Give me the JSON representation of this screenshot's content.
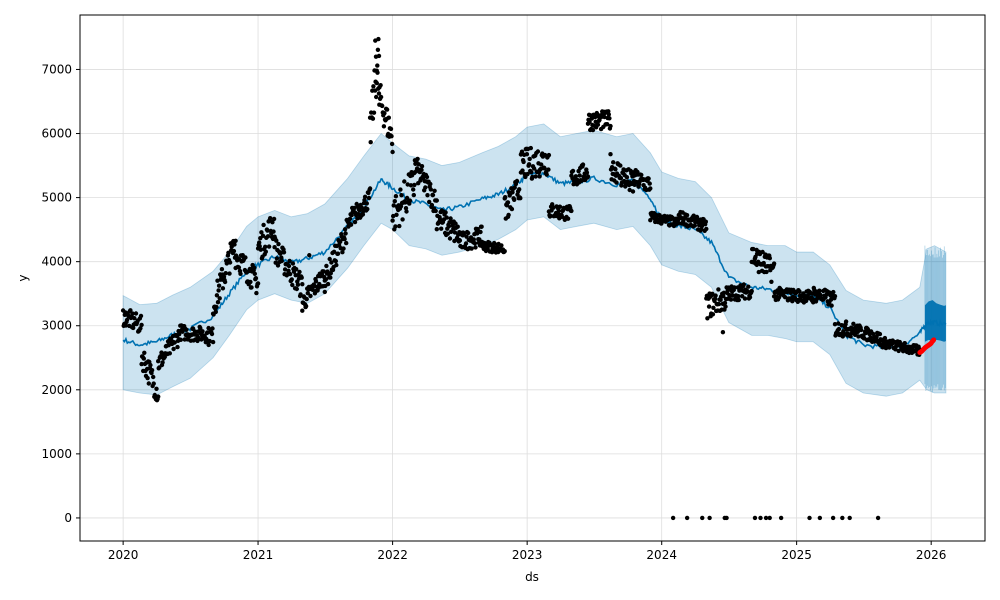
{
  "chart_data": {
    "type": "line",
    "title": "",
    "xlabel": "ds",
    "ylabel": "y",
    "xlim": [
      "2019-09-06",
      "2026-05-27"
    ],
    "ylim": [
      -360,
      7850
    ],
    "grid": true,
    "x_ticks": [
      "2020-01-01",
      "2021-01-01",
      "2022-01-01",
      "2023-01-01",
      "2024-01-01",
      "2025-01-01",
      "2026-01-01"
    ],
    "x_tick_labels": [
      "2020",
      "2021",
      "2022",
      "2023",
      "2024",
      "2025",
      "2026"
    ],
    "y_ticks": [
      0,
      1000,
      2000,
      3000,
      4000,
      5000,
      6000,
      7000
    ],
    "y_tick_labels": [
      "0",
      "1000",
      "2000",
      "3000",
      "4000",
      "5000",
      "6000",
      "7000"
    ],
    "colors": {
      "forecast": "#0072B2",
      "interval": "#0072B2",
      "observed": "#000000",
      "recent": "#ff0000",
      "grid": "#dddddd"
    },
    "forecast": {
      "name": "yhat",
      "points": [
        [
          "2020-01-01",
          2780
        ],
        [
          "2020-02-15",
          2700
        ],
        [
          "2020-04-01",
          2750
        ],
        [
          "2020-05-15",
          2860
        ],
        [
          "2020-07-01",
          2950
        ],
        [
          "2020-09-01",
          3150
        ],
        [
          "2020-10-15",
          3500
        ],
        [
          "2020-12-01",
          3850
        ],
        [
          "2021-01-01",
          3950
        ],
        [
          "2021-02-15",
          4080
        ],
        [
          "2021-04-01",
          3980
        ],
        [
          "2021-05-15",
          4050
        ],
        [
          "2021-07-01",
          4150
        ],
        [
          "2021-09-01",
          4550
        ],
        [
          "2021-10-15",
          4850
        ],
        [
          "2021-12-01",
          5280
        ],
        [
          "2022-01-01",
          5150
        ],
        [
          "2022-02-15",
          4960
        ],
        [
          "2022-04-01",
          4900
        ],
        [
          "2022-05-15",
          4800
        ],
        [
          "2022-07-01",
          4850
        ],
        [
          "2022-09-01",
          4980
        ],
        [
          "2022-10-15",
          5050
        ],
        [
          "2022-12-01",
          5200
        ],
        [
          "2023-01-01",
          5350
        ],
        [
          "2023-02-15",
          5380
        ],
        [
          "2023-04-01",
          5220
        ],
        [
          "2023-05-15",
          5240
        ],
        [
          "2023-07-01",
          5300
        ],
        [
          "2023-09-01",
          5200
        ],
        [
          "2023-10-15",
          5260
        ],
        [
          "2023-12-01",
          5000
        ],
        [
          "2024-01-01",
          4650
        ],
        [
          "2024-02-15",
          4560
        ],
        [
          "2024-04-01",
          4500
        ],
        [
          "2024-05-15",
          4300
        ],
        [
          "2024-07-01",
          3750
        ],
        [
          "2024-09-01",
          3600
        ],
        [
          "2024-10-15",
          3570
        ],
        [
          "2024-12-01",
          3530
        ],
        [
          "2025-01-01",
          3480
        ],
        [
          "2025-02-15",
          3470
        ],
        [
          "2025-04-01",
          3280
        ],
        [
          "2025-05-15",
          2850
        ],
        [
          "2025-07-01",
          2700
        ],
        [
          "2025-09-01",
          2660
        ],
        [
          "2025-10-15",
          2690
        ],
        [
          "2025-12-01",
          2880
        ],
        [
          "2025-12-20",
          3050
        ],
        [
          "2026-01-10",
          3050
        ],
        [
          "2026-02-10",
          3020
        ]
      ],
      "band_points": [
        [
          "2025-12-15",
          2750,
          3320
        ],
        [
          "2025-12-25",
          2780,
          3380
        ],
        [
          "2026-01-05",
          2760,
          3400
        ],
        [
          "2026-01-15",
          2780,
          3350
        ],
        [
          "2026-01-25",
          2770,
          3330
        ],
        [
          "2026-02-05",
          2750,
          3310
        ],
        [
          "2026-02-10",
          2760,
          3320
        ]
      ]
    },
    "uncertainty_interval": {
      "name": "yhat_lower / yhat_upper",
      "points": [
        [
          "2020-01-01",
          2000,
          3470
        ],
        [
          "2020-02-15",
          1950,
          3330
        ],
        [
          "2020-04-01",
          1920,
          3350
        ],
        [
          "2020-05-15",
          2050,
          3480
        ],
        [
          "2020-07-01",
          2180,
          3600
        ],
        [
          "2020-09-01",
          2500,
          3850
        ],
        [
          "2020-10-15",
          2850,
          4150
        ],
        [
          "2020-12-01",
          3250,
          4550
        ],
        [
          "2021-01-01",
          3400,
          4700
        ],
        [
          "2021-02-15",
          3500,
          4800
        ],
        [
          "2021-04-01",
          3400,
          4700
        ],
        [
          "2021-05-15",
          3350,
          4750
        ],
        [
          "2021-07-01",
          3500,
          4900
        ],
        [
          "2021-09-01",
          3900,
          5300
        ],
        [
          "2021-10-15",
          4250,
          5650
        ],
        [
          "2021-12-01",
          4600,
          6000
        ],
        [
          "2022-01-01",
          4500,
          5850
        ],
        [
          "2022-02-15",
          4250,
          5650
        ],
        [
          "2022-04-01",
          4200,
          5600
        ],
        [
          "2022-05-15",
          4100,
          5500
        ],
        [
          "2022-07-01",
          4150,
          5550
        ],
        [
          "2022-09-01",
          4250,
          5700
        ],
        [
          "2022-10-15",
          4350,
          5800
        ],
        [
          "2022-12-01",
          4500,
          5950
        ],
        [
          "2023-01-01",
          4650,
          6100
        ],
        [
          "2023-02-15",
          4700,
          6150
        ],
        [
          "2023-04-01",
          4500,
          5950
        ],
        [
          "2023-05-15",
          4550,
          6000
        ],
        [
          "2023-07-01",
          4600,
          6050
        ],
        [
          "2023-09-01",
          4500,
          5950
        ],
        [
          "2023-10-15",
          4550,
          6000
        ],
        [
          "2023-12-01",
          4250,
          5700
        ],
        [
          "2024-01-01",
          3950,
          5400
        ],
        [
          "2024-02-15",
          3850,
          5300
        ],
        [
          "2024-04-01",
          3800,
          5250
        ],
        [
          "2024-05-15",
          3600,
          5000
        ],
        [
          "2024-07-01",
          3050,
          4450
        ],
        [
          "2024-09-01",
          2850,
          4300
        ],
        [
          "2024-10-15",
          2850,
          4250
        ],
        [
          "2024-12-01",
          2800,
          4250
        ],
        [
          "2025-01-01",
          2750,
          4150
        ],
        [
          "2025-02-15",
          2750,
          4150
        ],
        [
          "2025-04-01",
          2550,
          3950
        ],
        [
          "2025-05-15",
          2100,
          3550
        ],
        [
          "2025-07-01",
          1950,
          3400
        ],
        [
          "2025-09-01",
          1900,
          3350
        ],
        [
          "2025-10-15",
          1950,
          3400
        ],
        [
          "2025-12-01",
          2150,
          3600
        ],
        [
          "2025-12-20",
          2000,
          4200
        ],
        [
          "2026-01-10",
          1950,
          4250
        ],
        [
          "2026-02-10",
          1950,
          4150
        ]
      ]
    },
    "observed": {
      "name": "y",
      "segments": [
        {
          "start": "2020-01-01",
          "end": "2020-02-20",
          "from": 3150,
          "to": 3000,
          "noise": 150
        },
        {
          "start": "2020-02-20",
          "end": "2020-04-05",
          "from": 2550,
          "to": 1950,
          "noise": 200
        },
        {
          "start": "2020-04-05",
          "end": "2020-06-01",
          "from": 2400,
          "to": 2850,
          "noise": 150
        },
        {
          "start": "2020-06-01",
          "end": "2020-09-01",
          "from": 2900,
          "to": 2850,
          "noise": 120
        },
        {
          "start": "2020-09-01",
          "end": "2020-11-01",
          "from": 3300,
          "to": 4300,
          "noise": 220
        },
        {
          "start": "2020-11-01",
          "end": "2021-01-01",
          "from": 4100,
          "to": 3650,
          "noise": 200
        },
        {
          "start": "2021-01-01",
          "end": "2021-02-15",
          "from": 4200,
          "to": 4600,
          "noise": 250
        },
        {
          "start": "2021-02-15",
          "end": "2021-05-01",
          "from": 4200,
          "to": 3600,
          "noise": 200
        },
        {
          "start": "2021-05-01",
          "end": "2021-07-01",
          "from": 3350,
          "to": 3800,
          "noise": 150
        },
        {
          "start": "2021-07-01",
          "end": "2021-09-15",
          "from": 3700,
          "to": 4700,
          "noise": 180
        },
        {
          "start": "2021-09-15",
          "end": "2021-11-01",
          "from": 4700,
          "to": 5000,
          "noise": 150
        },
        {
          "start": "2021-11-01",
          "end": "2021-11-25",
          "from": 6000,
          "to": 7300,
          "noise": 350
        },
        {
          "start": "2021-11-25",
          "end": "2022-01-01",
          "from": 6600,
          "to": 5900,
          "noise": 250
        },
        {
          "start": "2022-01-01",
          "end": "2022-03-01",
          "from": 4700,
          "to": 5200,
          "noise": 300
        },
        {
          "start": "2022-03-01",
          "end": "2022-05-01",
          "from": 5500,
          "to": 4900,
          "noise": 200
        },
        {
          "start": "2022-05-01",
          "end": "2022-07-01",
          "from": 4700,
          "to": 4400,
          "noise": 200
        },
        {
          "start": "2022-07-01",
          "end": "2022-09-01",
          "from": 4300,
          "to": 4400,
          "noise": 150
        },
        {
          "start": "2022-09-01",
          "end": "2022-11-01",
          "from": 4250,
          "to": 4200,
          "noise": 80
        },
        {
          "start": "2022-11-01",
          "end": "2022-12-15",
          "from": 4800,
          "to": 5200,
          "noise": 200
        },
        {
          "start": "2022-12-15",
          "end": "2023-03-01",
          "from": 5500,
          "to": 5600,
          "noise": 250
        },
        {
          "start": "2023-03-01",
          "end": "2023-05-01",
          "from": 4800,
          "to": 4750,
          "noise": 120
        },
        {
          "start": "2023-05-01",
          "end": "2023-06-15",
          "from": 5300,
          "to": 5400,
          "noise": 150
        },
        {
          "start": "2023-06-15",
          "end": "2023-08-15",
          "from": 6200,
          "to": 6200,
          "noise": 150
        },
        {
          "start": "2023-08-15",
          "end": "2023-10-15",
          "from": 5500,
          "to": 5200,
          "noise": 200
        },
        {
          "start": "2023-10-15",
          "end": "2023-12-01",
          "from": 5300,
          "to": 5200,
          "noise": 150
        },
        {
          "start": "2023-12-01",
          "end": "2024-02-15",
          "from": 4700,
          "to": 4600,
          "noise": 80
        },
        {
          "start": "2024-02-15",
          "end": "2024-05-01",
          "from": 4700,
          "to": 4550,
          "noise": 100
        },
        {
          "start": "2024-05-01",
          "end": "2024-07-01",
          "from": 3300,
          "to": 3450,
          "noise": 200
        },
        {
          "start": "2024-07-01",
          "end": "2024-09-01",
          "from": 3500,
          "to": 3550,
          "noise": 120
        },
        {
          "start": "2024-09-01",
          "end": "2024-11-01",
          "from": 4100,
          "to": 3850,
          "noise": 200
        },
        {
          "start": "2024-11-01",
          "end": "2025-02-15",
          "from": 3500,
          "to": 3450,
          "noise": 100
        },
        {
          "start": "2025-02-15",
          "end": "2025-04-15",
          "from": 3500,
          "to": 3400,
          "noise": 120
        },
        {
          "start": "2025-04-15",
          "end": "2025-06-01",
          "from": 2950,
          "to": 2950,
          "noise": 120
        },
        {
          "start": "2025-06-01",
          "end": "2025-08-15",
          "from": 2950,
          "to": 2800,
          "noise": 100
        },
        {
          "start": "2025-08-15",
          "end": "2025-12-01",
          "from": 2750,
          "to": 2600,
          "noise": 80
        }
      ],
      "spikes": [
        [
          "2020-08-20",
          2700
        ],
        [
          "2020-10-12",
          4000
        ],
        [
          "2021-05-20",
          4100
        ],
        [
          "2022-11-10",
          4700
        ],
        [
          "2024-06-15",
          2900
        ],
        [
          "2024-09-15",
          3950
        ]
      ],
      "zeros": [
        "2024-02-01",
        "2024-03-10",
        "2024-04-20",
        "2024-05-10",
        "2024-06-20",
        "2024-06-25",
        "2024-09-10",
        "2024-09-25",
        "2024-10-10",
        "2024-10-20",
        "2024-11-20",
        "2025-02-05",
        "2025-03-05",
        "2025-04-10",
        "2025-05-05",
        "2025-05-25",
        "2025-08-10"
      ]
    },
    "recent_observed": {
      "name": "y",
      "points": [
        [
          "2025-12-01",
          2580
        ],
        [
          "2025-12-06",
          2600
        ],
        [
          "2025-12-11",
          2630
        ],
        [
          "2025-12-16",
          2660
        ],
        [
          "2025-12-21",
          2680
        ],
        [
          "2025-12-26",
          2700
        ],
        [
          "2025-12-31",
          2720
        ],
        [
          "2026-01-05",
          2760
        ],
        [
          "2026-01-08",
          2780
        ]
      ]
    }
  }
}
